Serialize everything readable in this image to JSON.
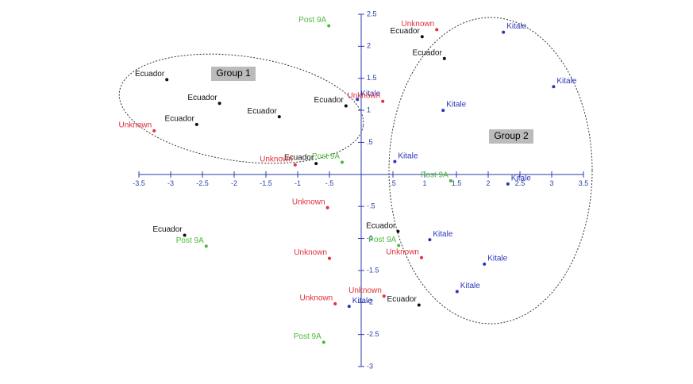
{
  "chart_data": {
    "type": "scatter",
    "annotations": [
      "Group 1",
      "Group 2"
    ],
    "xlim": [
      -3.5,
      3.5
    ],
    "ylim": [
      -3,
      2.5
    ],
    "xticks": [
      -3.5,
      -3,
      -2.5,
      -2,
      -1.5,
      -1,
      {
        "value": -0.5,
        "label": "-.5"
      },
      {
        "value": 0.5,
        "label": ".5"
      },
      1,
      1.5,
      2,
      2.5,
      3,
      3.5
    ],
    "yticks": [
      2.5,
      2,
      1.5,
      1,
      {
        "value": 0.5,
        "label": ".5"
      },
      {
        "value": -0.5,
        "label": "-.5"
      },
      -1,
      -1.5,
      -2,
      -2.5,
      -3
    ],
    "series": [
      {
        "name": "Ecuador",
        "color": "#111111",
        "x": [
          -3.06,
          -2.23,
          -2.59,
          -1.29,
          -0.24,
          -0.71,
          0.96,
          1.31,
          -2.78,
          0.58,
          0.91
        ],
        "values": [
          1.48,
          1.11,
          0.78,
          0.9,
          1.07,
          0.17,
          2.15,
          1.81,
          -0.95,
          -0.89,
          -2.04
        ]
      },
      {
        "name": "Kitale",
        "color": "#2b35b8",
        "x": [
          2.24,
          3.03,
          -0.06,
          1.29,
          0.53,
          2.31,
          1.08,
          1.94,
          1.51,
          -0.19
        ],
        "values": [
          2.22,
          1.37,
          1.17,
          1.0,
          0.2,
          -0.15,
          -1.02,
          -1.4,
          -1.83,
          -2.06
        ]
      },
      {
        "name": "Unknown",
        "color": "#e0303a",
        "x": [
          1.19,
          0.34,
          -3.26,
          -1.04,
          -0.53,
          -0.5,
          -0.41,
          0.36,
          0.95
        ],
        "values": [
          2.26,
          1.14,
          0.68,
          0.15,
          -0.52,
          -1.31,
          -2.02,
          -1.9,
          -1.3
        ]
      },
      {
        "name": "Post 9A",
        "color": "#4cb83a",
        "x": [
          -0.51,
          -0.3,
          1.41,
          -2.44,
          0.59,
          -0.59
        ],
        "values": [
          2.32,
          0.19,
          -0.1,
          -1.12,
          -1.11,
          -2.62
        ]
      }
    ]
  }
}
